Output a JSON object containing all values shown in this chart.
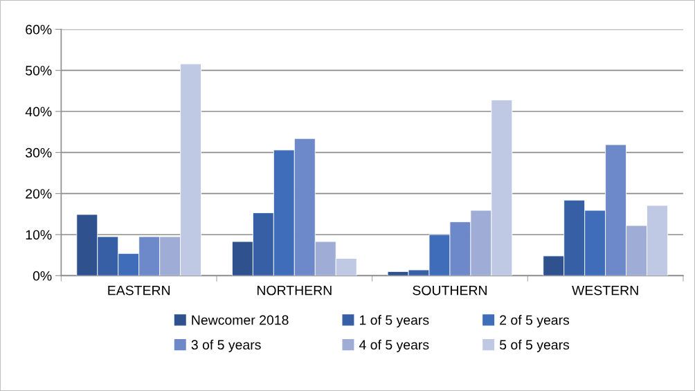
{
  "chart_data": {
    "type": "bar",
    "categories": [
      "EASTERN",
      "NORTHERN",
      "SOUTHERN",
      "WESTERN"
    ],
    "series": [
      {
        "name": "Newcomer 2018",
        "color": "#2f528f",
        "values": [
          14.9,
          8.3,
          1.0,
          4.8
        ]
      },
      {
        "name": "1 of 5 years",
        "color": "#375fa6",
        "values": [
          9.5,
          15.3,
          1.4,
          18.4
        ]
      },
      {
        "name": "2 of 5 years",
        "color": "#3f6dba",
        "values": [
          5.4,
          30.6,
          10.0,
          15.9
        ]
      },
      {
        "name": "3 of 5 years",
        "color": "#6e89c9",
        "values": [
          9.5,
          33.4,
          13.1,
          31.9
        ]
      },
      {
        "name": "4 of 5 years",
        "color": "#9facd6",
        "values": [
          9.5,
          8.3,
          15.9,
          12.2
        ]
      },
      {
        "name": "5 of 5 years",
        "color": "#bfc9e4",
        "values": [
          51.6,
          4.2,
          42.8,
          17.1
        ]
      }
    ],
    "ylim": [
      0,
      60
    ],
    "yticks": [
      {
        "value": 0,
        "label": "0%"
      },
      {
        "value": 10,
        "label": "10%"
      },
      {
        "value": 20,
        "label": "20%"
      },
      {
        "value": 30,
        "label": "30%"
      },
      {
        "value": 40,
        "label": "40%"
      },
      {
        "value": 50,
        "label": "50%"
      },
      {
        "value": 60,
        "label": "60%"
      }
    ],
    "grid": "y",
    "legend": "bottom"
  }
}
